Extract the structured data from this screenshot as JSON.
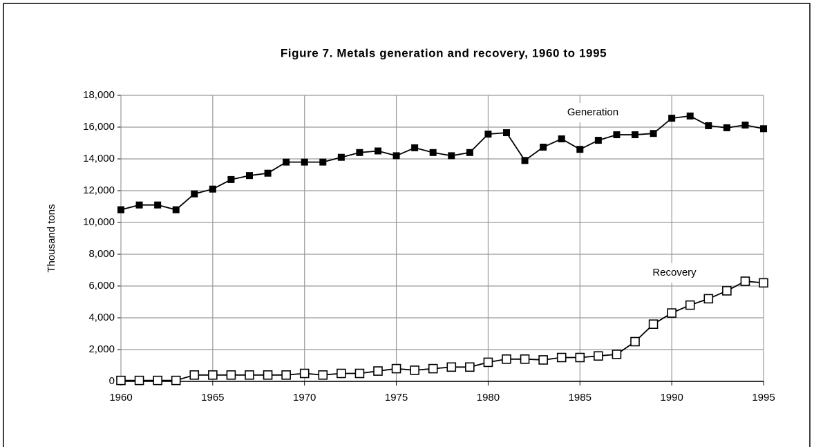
{
  "chart_data": {
    "type": "line",
    "title": "Figure 7. Metals generation and recovery, 1960 to 1995",
    "y_label": "Thousand tons",
    "x": [
      1960,
      1961,
      1962,
      1963,
      1964,
      1965,
      1966,
      1967,
      1968,
      1969,
      1970,
      1971,
      1972,
      1973,
      1974,
      1975,
      1976,
      1977,
      1978,
      1979,
      1980,
      1981,
      1982,
      1983,
      1984,
      1985,
      1986,
      1987,
      1988,
      1989,
      1990,
      1991,
      1992,
      1993,
      1994,
      1995
    ],
    "series": [
      {
        "name": "Generation",
        "color": "#000000",
        "marker": "filled-square",
        "values": [
          10800,
          11100,
          11100,
          10800,
          11800,
          12100,
          12700,
          12950,
          13100,
          13800,
          13800,
          13800,
          14100,
          14400,
          14500,
          14200,
          14700,
          14400,
          14200,
          14400,
          15560,
          15650,
          13900,
          14740,
          15260,
          14600,
          15170,
          15520,
          15520,
          15600,
          16560,
          16700,
          16090,
          15960,
          16130,
          15900
        ]
      },
      {
        "name": "Recovery",
        "color": "#000000",
        "marker": "open-square",
        "values": [
          60,
          60,
          60,
          60,
          400,
          400,
          400,
          400,
          400,
          400,
          500,
          400,
          500,
          500,
          650,
          800,
          700,
          800,
          900,
          900,
          1200,
          1400,
          1400,
          1350,
          1500,
          1500,
          1600,
          1700,
          2500,
          3600,
          4300,
          4800,
          5200,
          5700,
          6300,
          6200
        ]
      }
    ],
    "xlim": [
      1960,
      1995
    ],
    "xticks": [
      1960,
      1965,
      1970,
      1975,
      1980,
      1985,
      1990,
      1995
    ],
    "ylim": [
      0,
      18000
    ],
    "yticks": [
      0,
      {
        "value": 2000,
        "label": "2,000"
      },
      {
        "value": 4000,
        "label": "4,000"
      },
      {
        "value": 6000,
        "label": "6,000"
      },
      {
        "value": 8000,
        "label": "8,000"
      },
      {
        "value": 10000,
        "label": "10,000"
      },
      {
        "value": 12000,
        "label": "12,000"
      },
      {
        "value": 14000,
        "label": "14,000"
      },
      {
        "value": 16000,
        "label": "16,000"
      },
      {
        "value": 18000,
        "label": "18,000"
      }
    ],
    "grid": true
  }
}
